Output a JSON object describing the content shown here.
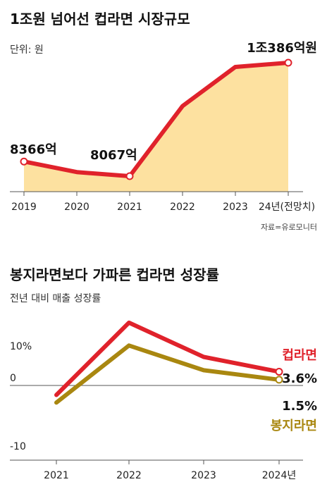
{
  "chart_data": [
    {
      "type": "area",
      "title": "1조원 넘어선 컵라면 시장규모",
      "unit_label": "단위: 원",
      "source": "자료=유로모니터",
      "categories": [
        "2019",
        "2020",
        "2021",
        "2022",
        "2023",
        "24년(전망치)"
      ],
      "values": [
        8366,
        8150,
        8067,
        9500,
        10300,
        10386
      ],
      "value_unit": "억",
      "labels": {
        "first": "8366억",
        "min": "8067억",
        "last": "1조386억원"
      },
      "colors": {
        "line": "#e0222b",
        "fill": "#fde1a0"
      }
    },
    {
      "type": "line",
      "title": "봉지라면보다 가파른 컵라면 성장률",
      "subtitle": "전년 대비 매출 성장률",
      "categories": [
        "2021",
        "2022",
        "2023",
        "2024년"
      ],
      "yticks": [
        "10%",
        "0",
        "-10"
      ],
      "ylim": [
        -10,
        15
      ],
      "series": [
        {
          "name": "컵라면",
          "values": [
            -2.5,
            16.5,
            7.5,
            3.6
          ],
          "end_label": "3.6%",
          "color": "#e0222b"
        },
        {
          "name": "봉지라면",
          "values": [
            -4.5,
            10.5,
            4.0,
            1.5
          ],
          "end_label": "1.5%",
          "color": "#a98710"
        }
      ]
    }
  ]
}
